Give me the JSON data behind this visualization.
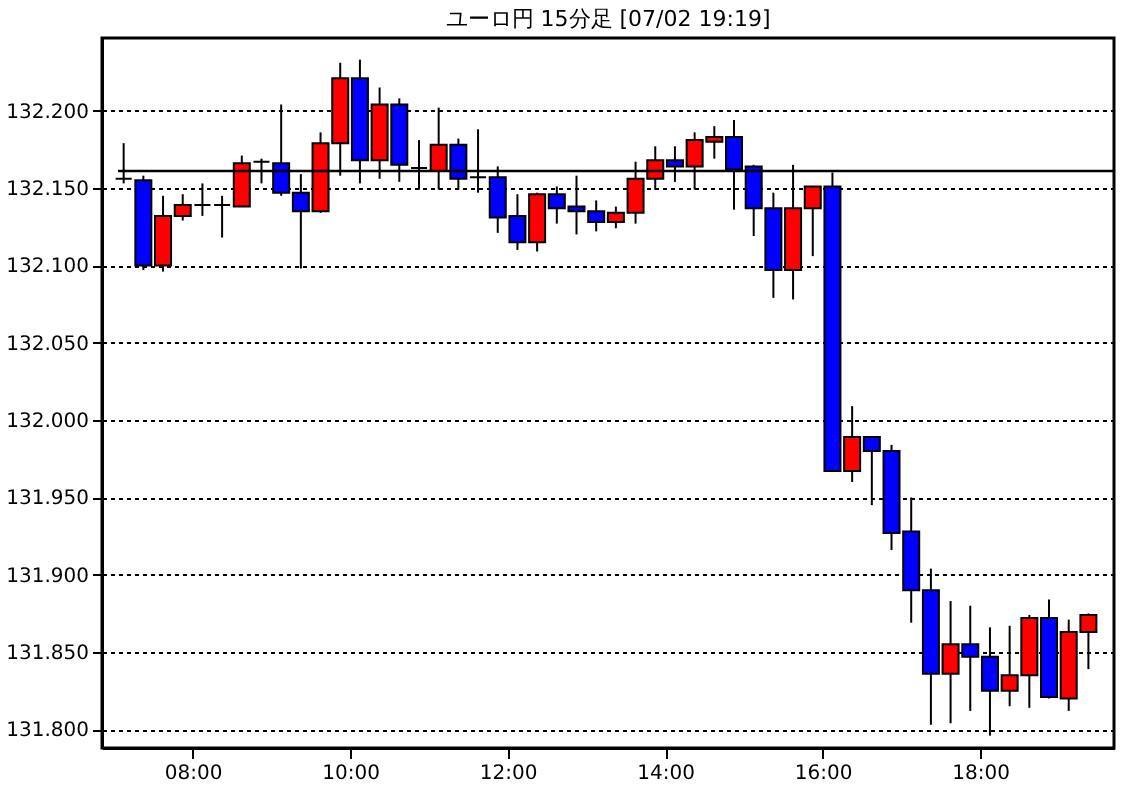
{
  "chart_data": {
    "type": "candlestick",
    "title": "ユーロ円 15分足 [07/02 19:19]",
    "x": [
      7.125,
      7.375,
      7.625,
      7.875,
      8.125,
      8.375,
      8.625,
      8.875,
      9.125,
      9.375,
      9.625,
      9.875,
      10.125,
      10.375,
      10.625,
      10.875,
      11.125,
      11.375,
      11.625,
      11.875,
      12.125,
      12.375,
      12.625,
      12.875,
      13.125,
      13.375,
      13.625,
      13.875,
      14.125,
      14.375,
      14.625,
      14.875,
      15.125,
      15.375,
      15.625,
      15.875,
      16.125,
      16.375,
      16.625,
      16.875,
      17.125,
      17.375,
      17.625,
      17.875,
      18.125,
      18.375,
      18.625,
      18.875,
      19.125,
      19.375
    ],
    "ohlc": [
      [
        132.156,
        132.179,
        132.153,
        132.156
      ],
      [
        132.155,
        132.158,
        132.097,
        132.1
      ],
      [
        132.1,
        132.145,
        132.096,
        132.132
      ],
      [
        132.132,
        132.146,
        132.129,
        132.139
      ],
      [
        132.139,
        132.153,
        132.132,
        132.139
      ],
      [
        132.139,
        132.145,
        132.118,
        132.139
      ],
      [
        132.138,
        132.171,
        132.138,
        132.166
      ],
      [
        132.167,
        132.169,
        132.153,
        132.167
      ],
      [
        132.166,
        132.204,
        132.145,
        132.147
      ],
      [
        132.147,
        132.159,
        132.098,
        132.135
      ],
      [
        132.135,
        132.186,
        132.134,
        132.179
      ],
      [
        132.179,
        132.231,
        132.158,
        132.221
      ],
      [
        132.221,
        132.233,
        132.153,
        132.168
      ],
      [
        132.168,
        132.215,
        132.156,
        132.204
      ],
      [
        132.204,
        132.208,
        132.154,
        132.165
      ],
      [
        132.163,
        132.181,
        132.149,
        132.163
      ],
      [
        132.161,
        132.202,
        132.149,
        132.178
      ],
      [
        132.178,
        132.182,
        132.149,
        132.156
      ],
      [
        132.157,
        132.188,
        132.147,
        132.157
      ],
      [
        132.157,
        132.164,
        132.121,
        132.131
      ],
      [
        132.132,
        132.146,
        132.11,
        132.115
      ],
      [
        132.115,
        132.147,
        132.109,
        132.146
      ],
      [
        132.146,
        132.151,
        132.127,
        132.137
      ],
      [
        132.138,
        132.158,
        132.12,
        132.135
      ],
      [
        132.135,
        132.142,
        132.122,
        132.128
      ],
      [
        132.128,
        132.138,
        132.124,
        132.134
      ],
      [
        132.134,
        132.167,
        132.127,
        132.156
      ],
      [
        132.156,
        132.177,
        132.149,
        132.168
      ],
      [
        132.168,
        132.177,
        132.154,
        132.164
      ],
      [
        132.164,
        132.186,
        132.149,
        132.181
      ],
      [
        132.18,
        132.19,
        132.169,
        132.183
      ],
      [
        132.183,
        132.194,
        132.136,
        132.162
      ],
      [
        132.164,
        132.165,
        132.119,
        132.137
      ],
      [
        132.137,
        132.147,
        132.079,
        132.097
      ],
      [
        132.097,
        132.165,
        132.078,
        132.137
      ],
      [
        132.137,
        132.151,
        132.106,
        132.151
      ],
      [
        132.151,
        132.16,
        131.967,
        131.967
      ],
      [
        131.967,
        132.009,
        131.96,
        131.989
      ],
      [
        131.989,
        131.989,
        131.945,
        131.98
      ],
      [
        131.98,
        131.984,
        131.916,
        131.927
      ],
      [
        131.928,
        131.95,
        131.869,
        131.89
      ],
      [
        131.89,
        131.904,
        131.803,
        131.836
      ],
      [
        131.836,
        131.883,
        131.804,
        131.855
      ],
      [
        131.855,
        131.88,
        131.812,
        131.847
      ],
      [
        131.847,
        131.866,
        131.796,
        131.825
      ],
      [
        131.825,
        131.867,
        131.815,
        131.835
      ],
      [
        131.835,
        131.874,
        131.814,
        131.872
      ],
      [
        131.872,
        131.884,
        131.82,
        131.821
      ],
      [
        131.82,
        131.871,
        131.812,
        131.863
      ],
      [
        131.863,
        131.875,
        131.839,
        131.874
      ]
    ],
    "colors": [
      "#000000",
      "#0000ff",
      "#ff0000",
      "#ff0000",
      "#000000",
      "#000000",
      "#ff0000",
      "#000000",
      "#0000ff",
      "#0000ff",
      "#ff0000",
      "#ff0000",
      "#0000ff",
      "#ff0000",
      "#0000ff",
      "#000000",
      "#ff0000",
      "#0000ff",
      "#000000",
      "#0000ff",
      "#0000ff",
      "#ff0000",
      "#0000ff",
      "#0000ff",
      "#0000ff",
      "#ff0000",
      "#ff0000",
      "#ff0000",
      "#0000ff",
      "#ff0000",
      "#ff0000",
      "#0000ff",
      "#0000ff",
      "#0000ff",
      "#ff0000",
      "#ff0000",
      "#0000ff",
      "#ff0000",
      "#0000ff",
      "#0000ff",
      "#0000ff",
      "#0000ff",
      "#ff0000",
      "#0000ff",
      "#0000ff",
      "#ff0000",
      "#ff0000",
      "#0000ff",
      "#ff0000",
      "#ff0000"
    ],
    "xlim": [
      6.85,
      19.7
    ],
    "xticks": [
      {
        "value": 8,
        "label": "08:00"
      },
      {
        "value": 10,
        "label": "10:00"
      },
      {
        "value": 12,
        "label": "12:00"
      },
      {
        "value": 14,
        "label": "14:00"
      },
      {
        "value": 16,
        "label": "16:00"
      },
      {
        "value": 18,
        "label": "18:00"
      }
    ],
    "ylim": [
      131.788,
      132.247
    ],
    "yticks": [
      {
        "value": 131.8,
        "label": "131.800"
      },
      {
        "value": 131.85,
        "label": "131.850"
      },
      {
        "value": 131.9,
        "label": "131.900"
      },
      {
        "value": 131.95,
        "label": "131.950"
      },
      {
        "value": 132.0,
        "label": "132.000"
      },
      {
        "value": 132.05,
        "label": "132.050"
      },
      {
        "value": 132.1,
        "label": "132.100"
      },
      {
        "value": 132.15,
        "label": "132.150"
      },
      {
        "value": 132.2,
        "label": "132.200"
      }
    ],
    "ref_lines": [
      {
        "axis": "y",
        "value": 132.161,
        "color": "#000000"
      }
    ],
    "grid": "y",
    "legend": false
  }
}
